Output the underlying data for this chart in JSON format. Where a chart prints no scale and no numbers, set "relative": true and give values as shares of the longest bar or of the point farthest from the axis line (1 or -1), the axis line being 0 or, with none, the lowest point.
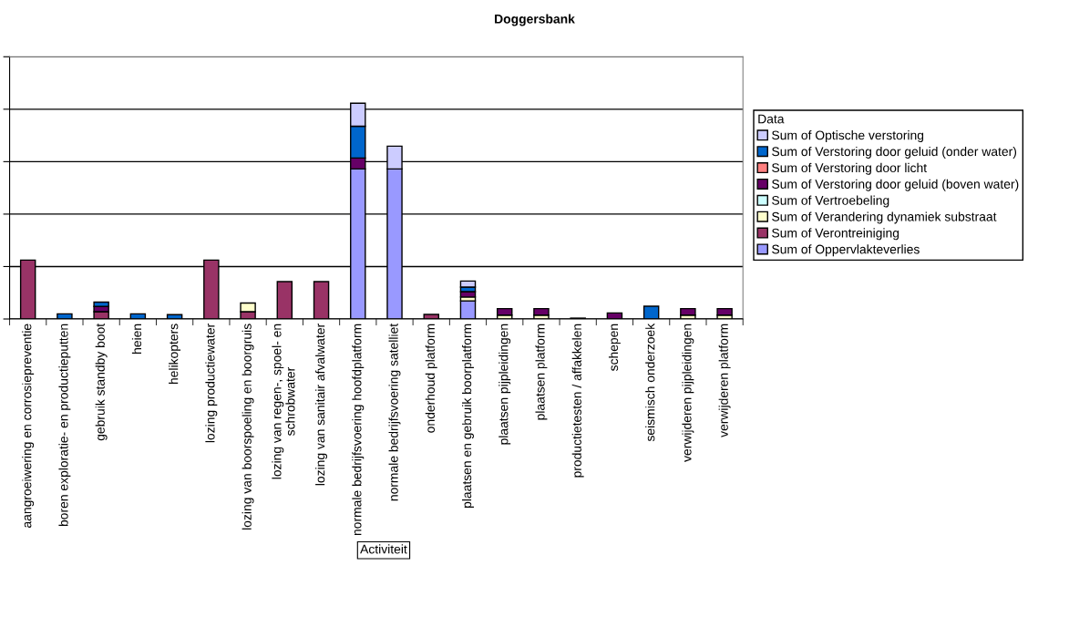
{
  "chart_data": {
    "type": "bar",
    "title": "Doggersbank",
    "xlabel": "Activiteit",
    "legend_title": "Data",
    "stacked": true,
    "relative": true,
    "grid": "y",
    "legend": "right",
    "categories": [
      "aangroeiwering en corrosiepreventie",
      "boren exploratie- en productieputten",
      "gebruik standby boot",
      "heien",
      "helikopters",
      "lozing productiewater",
      "lozing van boorspoeling en boorgruis",
      "lozing van regen-, spoel- en\nschrobwater",
      "lozing van sanitair afvalwater",
      "normale bedrijfsvoering hoofdplatform",
      "normale bedrijfsvoering satelliet",
      "onderhoud platform",
      "plaatsen en gebruik boorplatform",
      "plaatsen pijpleidingen",
      "plaatsen platform",
      "productietesten / affakkelen",
      "schepen",
      "seismisch onderzoek",
      "verwijderen pijpleidingen",
      "verwijderen platform"
    ],
    "series": [
      {
        "name": "Sum of Oppervlakteverlies",
        "color": "#9999ff",
        "values": [
          null,
          null,
          null,
          null,
          null,
          null,
          null,
          null,
          null,
          0.695,
          0.695,
          null,
          0.084,
          null,
          null,
          null,
          null,
          null,
          null,
          null
        ]
      },
      {
        "name": "Sum of Verontreiniging",
        "color": "#993366",
        "values": [
          0.273,
          null,
          0.034,
          null,
          null,
          0.273,
          0.034,
          0.173,
          0.173,
          null,
          null,
          0.021,
          null,
          null,
          null,
          null,
          null,
          null,
          null,
          null
        ]
      },
      {
        "name": "Sum of Verandering dynamiek substraat",
        "color": "#ffffcc",
        "values": [
          null,
          null,
          null,
          null,
          null,
          null,
          0.04,
          null,
          null,
          null,
          null,
          null,
          0.018,
          0.018,
          0.018,
          null,
          null,
          null,
          0.018,
          0.018
        ]
      },
      {
        "name": "Sum of Vertroebeling",
        "color": "#ccffff",
        "values": [
          null,
          null,
          null,
          null,
          null,
          null,
          null,
          null,
          null,
          null,
          null,
          null,
          null,
          null,
          null,
          null,
          null,
          null,
          null,
          null
        ]
      },
      {
        "name": "Sum of Verstoring door geluid (boven water)",
        "color": "#660066",
        "values": [
          null,
          null,
          0.024,
          null,
          null,
          null,
          null,
          null,
          null,
          0.051,
          null,
          null,
          0.025,
          0.03,
          0.03,
          0.004,
          0.028,
          null,
          0.03,
          0.03
        ]
      },
      {
        "name": "Sum of Verstoring door licht",
        "color": "#ff8080",
        "values": [
          null,
          null,
          null,
          null,
          null,
          null,
          null,
          null,
          null,
          null,
          null,
          null,
          null,
          null,
          null,
          null,
          null,
          null,
          null,
          null
        ]
      },
      {
        "name": "Sum of Verstoring door geluid (onder water)",
        "color": "#0066cc",
        "values": [
          null,
          0.024,
          0.02,
          0.024,
          0.02,
          null,
          null,
          null,
          null,
          0.147,
          null,
          null,
          0.021,
          null,
          null,
          null,
          null,
          0.059,
          null,
          null
        ]
      },
      {
        "name": "Sum of Optische verstoring",
        "color": "#ccccff",
        "values": [
          null,
          null,
          null,
          null,
          null,
          null,
          null,
          null,
          null,
          0.107,
          0.106,
          null,
          0.028,
          null,
          null,
          null,
          null,
          null,
          null,
          null
        ]
      }
    ]
  }
}
